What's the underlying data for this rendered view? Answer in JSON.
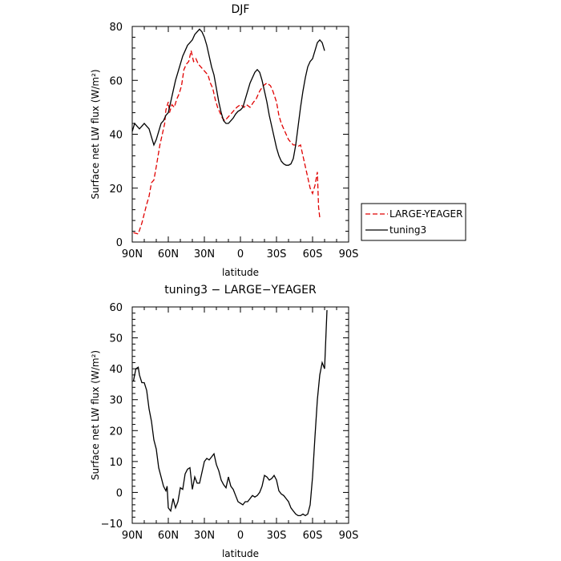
{
  "chart_data": [
    {
      "type": "line",
      "title": "DJF",
      "xlabel": "latitude",
      "ylabel": "Surface net LW flux (W/m²)",
      "xlim": [
        -90,
        90
      ],
      "ylim": [
        0,
        80
      ],
      "x_ticks": [
        {
          "value": -90,
          "label": "90N"
        },
        {
          "value": -60,
          "label": "60N"
        },
        {
          "value": -30,
          "label": "30N"
        },
        {
          "value": 0,
          "label": "0"
        },
        {
          "value": 30,
          "label": "30S"
        },
        {
          "value": 60,
          "label": "60S"
        },
        {
          "value": 90,
          "label": "90S"
        }
      ],
      "y_ticks": [
        0,
        20,
        40,
        60,
        80
      ],
      "legend": "right",
      "series": [
        {
          "name": "LARGE-YEAGER",
          "color": "#e00000",
          "dash": "dashed",
          "points": [
            [
              -89,
              3.5
            ],
            [
              -85,
              3
            ],
            [
              -82,
              7
            ],
            [
              -78,
              14
            ],
            [
              -76,
              17
            ],
            [
              -74,
              22
            ],
            [
              -72,
              23
            ],
            [
              -70,
              28
            ],
            [
              -67,
              36
            ],
            [
              -65,
              40
            ],
            [
              -63,
              44
            ],
            [
              -62,
              49
            ],
            [
              -60,
              52
            ],
            [
              -59,
              48
            ],
            [
              -57,
              51
            ],
            [
              -55,
              50
            ],
            [
              -53,
              53
            ],
            [
              -51,
              55
            ],
            [
              -49,
              58
            ],
            [
              -47,
              64
            ],
            [
              -45,
              66
            ],
            [
              -43,
              67
            ],
            [
              -41,
              71
            ],
            [
              -39,
              67
            ],
            [
              -37,
              68
            ],
            [
              -35,
              66
            ],
            [
              -33,
              65
            ],
            [
              -31,
              64
            ],
            [
              -29,
              63
            ],
            [
              -27,
              62
            ],
            [
              -25,
              59
            ],
            [
              -23,
              57
            ],
            [
              -21,
              53
            ],
            [
              -19,
              50
            ],
            [
              -17,
              48
            ],
            [
              -15,
              46
            ],
            [
              -13,
              45
            ],
            [
              -11,
              46
            ],
            [
              -9,
              47
            ],
            [
              -7,
              48
            ],
            [
              -5,
              49
            ],
            [
              -3,
              50
            ],
            [
              0,
              51
            ],
            [
              3,
              50
            ],
            [
              5,
              51
            ],
            [
              8,
              50
            ],
            [
              11,
              52
            ],
            [
              13,
              53
            ],
            [
              16,
              56
            ],
            [
              19,
              58
            ],
            [
              22,
              59
            ],
            [
              25,
              58
            ],
            [
              27,
              56
            ],
            [
              30,
              52
            ],
            [
              32,
              47
            ],
            [
              34,
              44
            ],
            [
              36,
              42
            ],
            [
              38,
              40
            ],
            [
              40,
              38
            ],
            [
              42,
              37
            ],
            [
              44,
              36
            ],
            [
              46,
              36
            ],
            [
              48,
              35.5
            ],
            [
              50,
              36
            ],
            [
              52,
              32
            ],
            [
              54,
              28
            ],
            [
              56,
              24
            ],
            [
              58,
              20
            ],
            [
              60,
              18
            ],
            [
              62,
              21
            ],
            [
              64,
              26
            ],
            [
              65,
              13
            ],
            [
              66,
              9
            ]
          ]
        },
        {
          "name": "tuning3",
          "color": "#000000",
          "dash": "solid",
          "points": [
            [
              -90,
              41
            ],
            [
              -88,
              44
            ],
            [
              -86,
              43
            ],
            [
              -84,
              42
            ],
            [
              -82,
              43
            ],
            [
              -80,
              44
            ],
            [
              -78,
              43
            ],
            [
              -76,
              42
            ],
            [
              -74,
              39
            ],
            [
              -72,
              36
            ],
            [
              -70,
              38
            ],
            [
              -68,
              41
            ],
            [
              -66,
              44
            ],
            [
              -64,
              45
            ],
            [
              -62,
              47
            ],
            [
              -60,
              48
            ],
            [
              -58,
              52
            ],
            [
              -56,
              56
            ],
            [
              -54,
              60
            ],
            [
              -52,
              63
            ],
            [
              -50,
              66
            ],
            [
              -48,
              69
            ],
            [
              -46,
              71
            ],
            [
              -44,
              73
            ],
            [
              -42,
              74
            ],
            [
              -40,
              75
            ],
            [
              -38,
              77
            ],
            [
              -36,
              78
            ],
            [
              -34,
              79
            ],
            [
              -32,
              78
            ],
            [
              -30,
              76
            ],
            [
              -28,
              73
            ],
            [
              -26,
              69
            ],
            [
              -24,
              65
            ],
            [
              -22,
              62
            ],
            [
              -20,
              57
            ],
            [
              -18,
              52
            ],
            [
              -16,
              48
            ],
            [
              -14,
              45
            ],
            [
              -12,
              44
            ],
            [
              -10,
              44
            ],
            [
              -8,
              45
            ],
            [
              -6,
              46
            ],
            [
              -4,
              47.5
            ],
            [
              -2,
              48.5
            ],
            [
              0,
              49
            ],
            [
              2,
              50
            ],
            [
              4,
              53
            ],
            [
              6,
              56
            ],
            [
              8,
              59
            ],
            [
              10,
              61
            ],
            [
              12,
              63
            ],
            [
              14,
              64
            ],
            [
              16,
              63
            ],
            [
              18,
              60
            ],
            [
              20,
              56
            ],
            [
              22,
              52
            ],
            [
              24,
              47
            ],
            [
              26,
              43
            ],
            [
              28,
              39
            ],
            [
              30,
              35
            ],
            [
              32,
              32
            ],
            [
              34,
              30
            ],
            [
              36,
              29
            ],
            [
              38,
              28.5
            ],
            [
              40,
              28.5
            ],
            [
              42,
              29
            ],
            [
              44,
              31
            ],
            [
              46,
              36
            ],
            [
              48,
              43
            ],
            [
              50,
              50
            ],
            [
              52,
              56
            ],
            [
              54,
              61
            ],
            [
              56,
              65
            ],
            [
              58,
              67
            ],
            [
              60,
              68
            ],
            [
              62,
              71
            ],
            [
              64,
              74
            ],
            [
              66,
              75
            ],
            [
              68,
              74
            ],
            [
              70,
              71
            ]
          ]
        }
      ]
    },
    {
      "type": "line",
      "title": "tuning3 − LARGE−YEAGER",
      "xlabel": "latitude",
      "ylabel": "Surface net LW flux (W/m²)",
      "xlim": [
        -90,
        90
      ],
      "ylim": [
        -10,
        60
      ],
      "x_ticks": [
        {
          "value": -90,
          "label": "90N"
        },
        {
          "value": -60,
          "label": "60N"
        },
        {
          "value": -30,
          "label": "30N"
        },
        {
          "value": 0,
          "label": "0"
        },
        {
          "value": 30,
          "label": "30S"
        },
        {
          "value": 60,
          "label": "60S"
        },
        {
          "value": 90,
          "label": "90S"
        }
      ],
      "y_ticks": [
        -10,
        0,
        10,
        20,
        30,
        40,
        50,
        60
      ],
      "series": [
        {
          "color": "#000000",
          "dash": "solid",
          "points": [
            [
              -89,
              36
            ],
            [
              -87,
              40
            ],
            [
              -85,
              40.5
            ],
            [
              -84,
              38
            ],
            [
              -82,
              35.5
            ],
            [
              -80,
              35.5
            ],
            [
              -78,
              33
            ],
            [
              -76,
              27
            ],
            [
              -74,
              23
            ],
            [
              -72,
              17
            ],
            [
              -70,
              14
            ],
            [
              -68,
              8
            ],
            [
              -66,
              5
            ],
            [
              -64,
              2
            ],
            [
              -62,
              0.5
            ],
            [
              -61,
              2
            ],
            [
              -60,
              -5
            ],
            [
              -58,
              -6
            ],
            [
              -56,
              -2
            ],
            [
              -54,
              -5
            ],
            [
              -52,
              -3
            ],
            [
              -50,
              1.5
            ],
            [
              -48,
              1
            ],
            [
              -46,
              6
            ],
            [
              -44,
              7.5
            ],
            [
              -42,
              8
            ],
            [
              -40,
              1
            ],
            [
              -38,
              5
            ],
            [
              -36,
              3
            ],
            [
              -34,
              3
            ],
            [
              -32,
              6.5
            ],
            [
              -30,
              10
            ],
            [
              -28,
              11
            ],
            [
              -26,
              10.5
            ],
            [
              -24,
              11.5
            ],
            [
              -22,
              12.5
            ],
            [
              -20,
              9
            ],
            [
              -18,
              7
            ],
            [
              -16,
              4
            ],
            [
              -14,
              2.5
            ],
            [
              -12,
              1.5
            ],
            [
              -10,
              5
            ],
            [
              -8,
              2
            ],
            [
              -6,
              1
            ],
            [
              -4,
              -1
            ],
            [
              -2,
              -3
            ],
            [
              0,
              -3.5
            ],
            [
              2,
              -4
            ],
            [
              4,
              -3
            ],
            [
              6,
              -3
            ],
            [
              8,
              -2
            ],
            [
              10,
              -1
            ],
            [
              12,
              -1.5
            ],
            [
              14,
              -1
            ],
            [
              16,
              0
            ],
            [
              18,
              2
            ],
            [
              20,
              5.5
            ],
            [
              22,
              5
            ],
            [
              24,
              4
            ],
            [
              26,
              4.5
            ],
            [
              28,
              5.5
            ],
            [
              30,
              4
            ],
            [
              32,
              0.5
            ],
            [
              34,
              -0.5
            ],
            [
              36,
              -1
            ],
            [
              38,
              -2
            ],
            [
              40,
              -3
            ],
            [
              42,
              -5
            ],
            [
              44,
              -6
            ],
            [
              46,
              -7
            ],
            [
              48,
              -7.5
            ],
            [
              50,
              -7.5
            ],
            [
              52,
              -7
            ],
            [
              54,
              -7.5
            ],
            [
              56,
              -7
            ],
            [
              58,
              -4
            ],
            [
              60,
              5
            ],
            [
              62,
              18
            ],
            [
              64,
              30
            ],
            [
              66,
              38
            ],
            [
              68,
              42
            ],
            [
              70,
              40
            ],
            [
              72,
              59
            ]
          ]
        }
      ]
    }
  ]
}
